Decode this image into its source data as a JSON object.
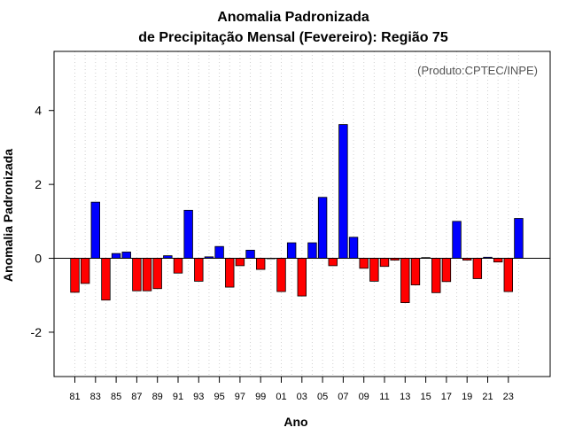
{
  "chart_data": {
    "type": "bar",
    "title_line1": "Anomalia Padronizada",
    "title_line2": "de Precipitação Mensal (Fevereiro): Região 75",
    "credit": "(Produto:CPTEC/INPE)",
    "xlabel": "Ano",
    "ylabel": "Anomalia Padronizada",
    "ylim": [
      -3.2,
      5.6
    ],
    "yticks": [
      -2,
      0,
      2,
      4
    ],
    "xtick_labels": [
      "81",
      "83",
      "85",
      "87",
      "89",
      "91",
      "93",
      "95",
      "97",
      "99",
      "01",
      "03",
      "05",
      "07",
      "09",
      "11",
      "13",
      "15",
      "17",
      "19",
      "21",
      "23"
    ],
    "grid": "vertical-dotted",
    "positive_color": "#0000ff",
    "negative_color": "#ff0000",
    "categories": [
      "1981",
      "1982",
      "1983",
      "1984",
      "1985",
      "1986",
      "1987",
      "1988",
      "1989",
      "1990",
      "1991",
      "1992",
      "1993",
      "1994",
      "1995",
      "1996",
      "1997",
      "1998",
      "1999",
      "2000",
      "2001",
      "2002",
      "2003",
      "2004",
      "2005",
      "2006",
      "2007",
      "2008",
      "2009",
      "2010",
      "2011",
      "2012",
      "2013",
      "2014",
      "2015",
      "2016",
      "2017",
      "2018",
      "2019",
      "2020",
      "2021",
      "2022",
      "2023",
      "2024"
    ],
    "values": [
      -0.92,
      -0.68,
      1.52,
      -1.13,
      0.13,
      0.17,
      -0.88,
      -0.88,
      -0.82,
      0.07,
      -0.4,
      1.3,
      -0.62,
      0.04,
      0.32,
      -0.78,
      -0.2,
      0.22,
      -0.3,
      0.0,
      -0.9,
      0.42,
      -1.02,
      0.42,
      1.65,
      -0.2,
      3.62,
      0.57,
      -0.27,
      -0.62,
      -0.22,
      -0.05,
      -1.2,
      -0.72,
      0.02,
      -0.93,
      -0.63,
      1.0,
      -0.05,
      -0.55,
      0.03,
      -0.1,
      -0.9,
      1.08
    ]
  }
}
